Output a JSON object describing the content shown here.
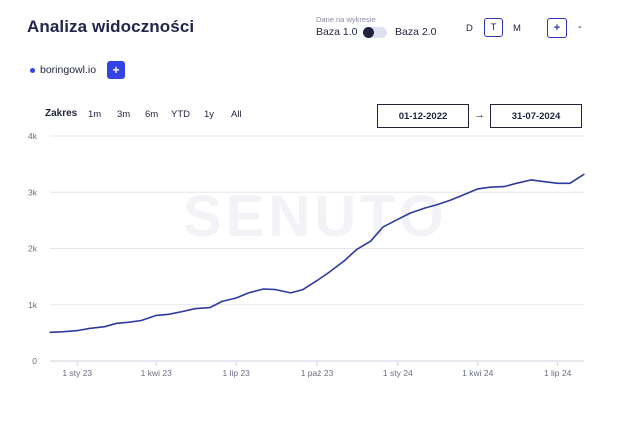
{
  "header": {
    "title": "Analiza widoczności",
    "toggle": {
      "caption": "Dane na wykresie",
      "left_label": "Baza 1.0",
      "right_label": "Baza 2.0"
    },
    "granularity": [
      "D",
      "T",
      "M"
    ],
    "granularity_selected": "T",
    "zoom": {
      "plus": "+",
      "minus": "-"
    }
  },
  "domain": {
    "name": "boringowl.io",
    "add_label": "+"
  },
  "range": {
    "label": "Zakres",
    "options": [
      "1m",
      "3m",
      "6m",
      "YTD",
      "1y",
      "All"
    ],
    "from": "01-12-2022",
    "arrow": "→",
    "to": "31-07-2024"
  },
  "watermark": "SENUTO",
  "colors": {
    "accent": "#3343e6",
    "line": "#2f3a9e",
    "grid": "#e6e7ee"
  },
  "chart_data": {
    "type": "line",
    "yticks": [
      "0",
      "1k",
      "2k",
      "3k",
      "4k"
    ],
    "ylim": [
      0,
      4000
    ],
    "xticks": [
      {
        "label": "1 sty 23",
        "x": "2023-01-01"
      },
      {
        "label": "1 kwi 23",
        "x": "2023-04-01"
      },
      {
        "label": "1 lip 23",
        "x": "2023-07-01"
      },
      {
        "label": "1 paź 23",
        "x": "2023-10-01"
      },
      {
        "label": "1 sty 24",
        "x": "2024-01-01"
      },
      {
        "label": "1 kwi 24",
        "x": "2024-04-01"
      },
      {
        "label": "1 lip 24",
        "x": "2024-07-01"
      }
    ],
    "xlim": [
      "2022-12-01",
      "2024-07-31"
    ],
    "series": [
      {
        "x": [
          "2022-12-01",
          "2022-12-15",
          "2023-01-01",
          "2023-01-15",
          "2023-02-01",
          "2023-02-15",
          "2023-03-01",
          "2023-03-15",
          "2023-04-01",
          "2023-04-15",
          "2023-05-01",
          "2023-05-15",
          "2023-06-01",
          "2023-06-15",
          "2023-07-01",
          "2023-07-15",
          "2023-08-01",
          "2023-08-15",
          "2023-09-01",
          "2023-09-15",
          "2023-10-01",
          "2023-10-15",
          "2023-11-01",
          "2023-11-15",
          "2023-12-01",
          "2023-12-15",
          "2024-01-01",
          "2024-01-15",
          "2024-02-01",
          "2024-02-15",
          "2024-03-01",
          "2024-03-15",
          "2024-04-01",
          "2024-04-15",
          "2024-05-01",
          "2024-05-15",
          "2024-06-01",
          "2024-06-15",
          "2024-07-01",
          "2024-07-15",
          "2024-07-31"
        ],
        "y": [
          510,
          520,
          540,
          580,
          610,
          670,
          690,
          720,
          810,
          830,
          880,
          930,
          950,
          1060,
          1120,
          1210,
          1280,
          1270,
          1210,
          1270,
          1430,
          1580,
          1780,
          1980,
          2130,
          2380,
          2520,
          2630,
          2720,
          2780,
          2860,
          2950,
          3060,
          3090,
          3100,
          3160,
          3220,
          3190,
          3160,
          3160,
          3320
        ]
      }
    ]
  }
}
